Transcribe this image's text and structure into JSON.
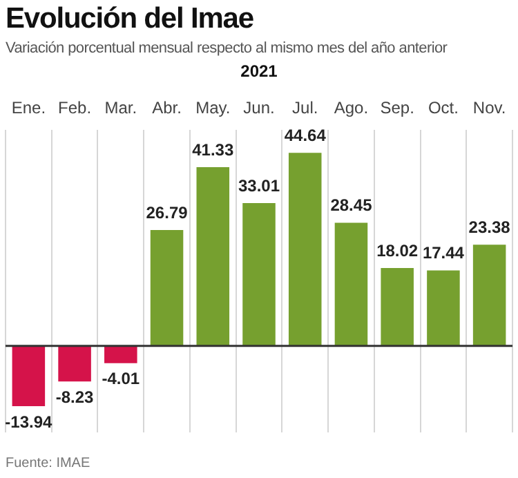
{
  "chart_data": {
    "type": "bar",
    "title": "Evolución del Imae",
    "subtitle": "Variación porcentual mensual respecto al mismo mes del año anterior",
    "xlabel": "2021",
    "categories": [
      "Ene.",
      "Feb.",
      "Mar.",
      "Abr.",
      "May.",
      "Jun.",
      "Jul.",
      "Ago.",
      "Sep.",
      "Oct.",
      "Nov."
    ],
    "values": [
      -13.94,
      -8.23,
      -4.01,
      26.79,
      41.33,
      33.01,
      44.64,
      28.45,
      18.02,
      17.44,
      23.38
    ],
    "colors": [
      "#d5134a",
      "#d5134a",
      "#d5134a",
      "#76a02f",
      "#76a02f",
      "#76a02f",
      "#76a02f",
      "#76a02f",
      "#76a02f",
      "#76a02f",
      "#76a02f"
    ],
    "data_labels": true,
    "grid": "x",
    "legend": false,
    "annotations": [
      "Fuente: IMAE"
    ]
  }
}
